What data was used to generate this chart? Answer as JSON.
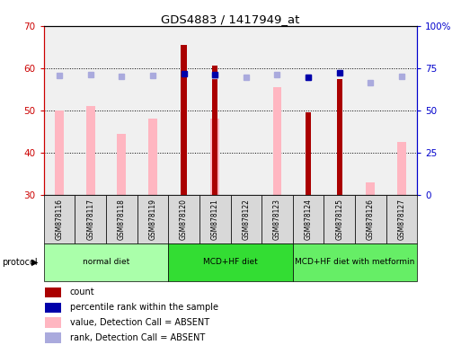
{
  "title": "GDS4883 / 1417949_at",
  "samples": [
    "GSM878116",
    "GSM878117",
    "GSM878118",
    "GSM878119",
    "GSM878120",
    "GSM878121",
    "GSM878122",
    "GSM878123",
    "GSM878124",
    "GSM878125",
    "GSM878126",
    "GSM878127"
  ],
  "count_values": [
    null,
    null,
    null,
    null,
    65.5,
    60.5,
    null,
    null,
    49.5,
    57.5,
    null,
    null
  ],
  "value_absent": [
    50.0,
    51.0,
    44.5,
    48.0,
    null,
    48.0,
    null,
    55.5,
    null,
    null,
    33.0,
    42.5
  ],
  "rank_absent_pct": [
    70.6,
    71.25,
    70.0,
    70.6,
    null,
    70.6,
    69.4,
    71.25,
    69.4,
    null,
    66.25,
    70.0
  ],
  "percentile_rank_pct": [
    null,
    null,
    null,
    null,
    71.9,
    71.25,
    null,
    null,
    69.4,
    72.5,
    null,
    null
  ],
  "ylim_left": [
    30,
    70
  ],
  "ylim_right": [
    0,
    100
  ],
  "yticks_left": [
    30,
    40,
    50,
    60,
    70
  ],
  "yticks_right": [
    0,
    25,
    50,
    75,
    100
  ],
  "ytick_labels_right": [
    "0",
    "25",
    "50",
    "75",
    "100%"
  ],
  "protocol_groups": [
    {
      "label": "normal diet",
      "start": 0,
      "end": 4,
      "color": "#AAFFAA"
    },
    {
      "label": "MCD+HF diet",
      "start": 4,
      "end": 8,
      "color": "#33DD33"
    },
    {
      "label": "MCD+HF diet with metformin",
      "start": 8,
      "end": 12,
      "color": "#66EE66"
    }
  ],
  "count_color": "#AA0000",
  "value_absent_color": "#FFB6C1",
  "rank_absent_color": "#AAAADD",
  "percentile_rank_color": "#0000AA",
  "left_axis_color": "#CC0000",
  "right_axis_color": "#0000CC",
  "bg_color": "#F0F0F0",
  "sample_box_color": "#D8D8D8",
  "legend_items": [
    {
      "label": "count",
      "color": "#AA0000"
    },
    {
      "label": "percentile rank within the sample",
      "color": "#0000AA"
    },
    {
      "label": "value, Detection Call = ABSENT",
      "color": "#FFB6C1"
    },
    {
      "label": "rank, Detection Call = ABSENT",
      "color": "#AAAADD"
    }
  ]
}
